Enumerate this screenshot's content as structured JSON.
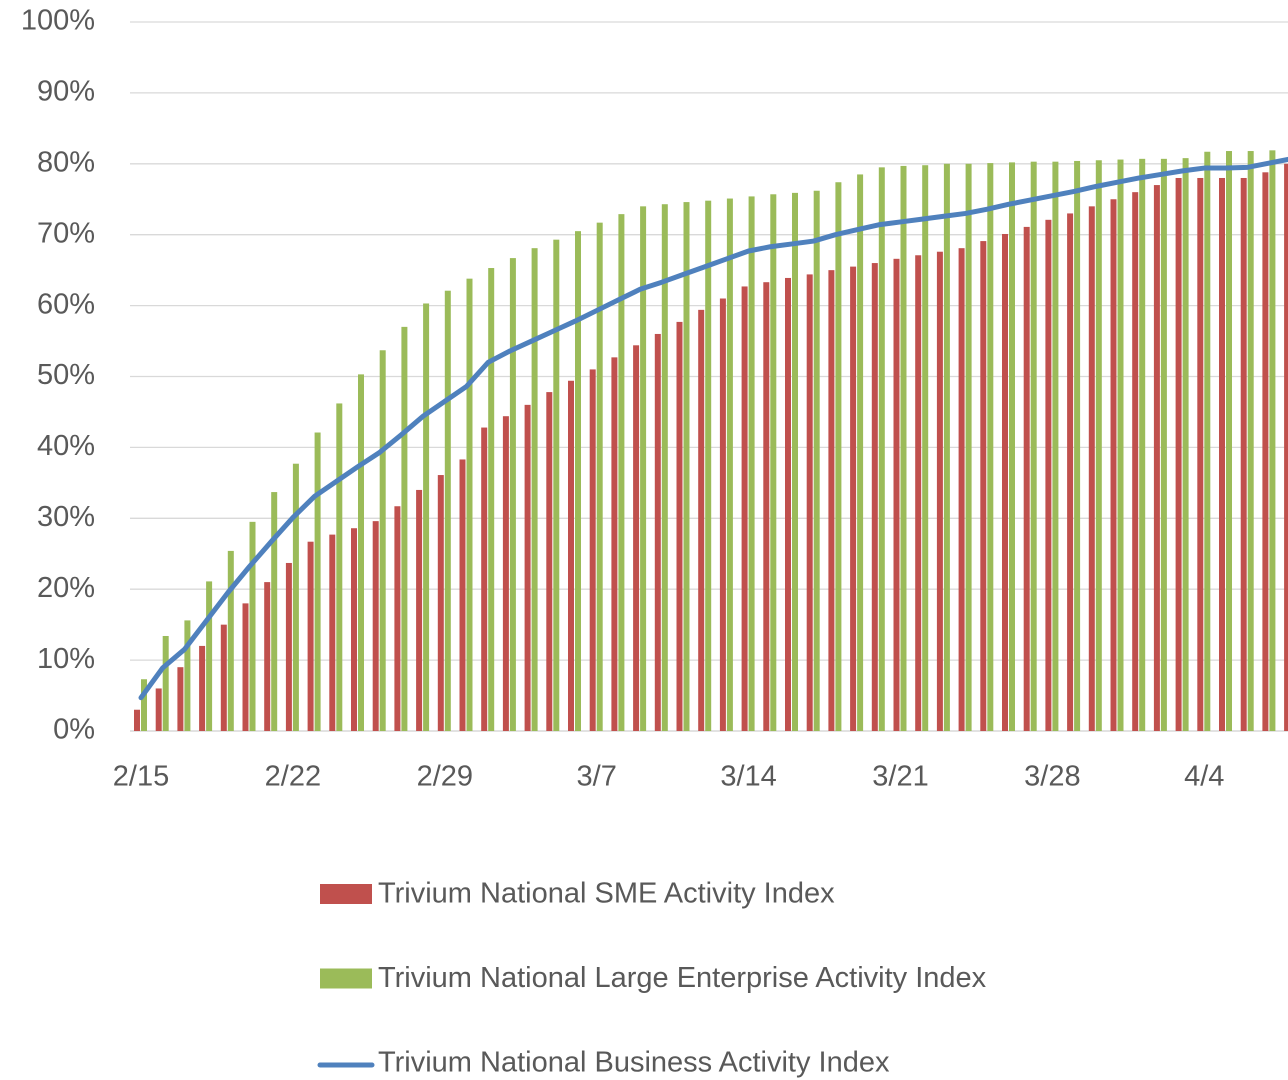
{
  "chart_data": {
    "type": "bar",
    "categories": [
      "2/15",
      null,
      null,
      null,
      null,
      null,
      null,
      "2/22",
      null,
      null,
      null,
      null,
      null,
      null,
      "2/29",
      null,
      null,
      null,
      null,
      null,
      null,
      "3/7",
      null,
      null,
      null,
      null,
      null,
      null,
      "3/14",
      null,
      null,
      null,
      null,
      null,
      null,
      "3/21",
      null,
      null,
      null,
      null,
      null,
      null,
      "3/28",
      null,
      null,
      null,
      null,
      null,
      null,
      "4/4",
      null,
      null,
      null,
      null
    ],
    "series": [
      {
        "name": "Trivium National SME Activity Index",
        "type": "bar",
        "color": "#c0504d",
        "values": [
          3,
          6,
          9,
          12,
          15,
          18,
          21,
          23.7,
          26.7,
          27.7,
          28.6,
          29.6,
          31.7,
          34,
          36.1,
          38.3,
          42.8,
          44.4,
          46,
          47.8,
          49.4,
          51,
          52.7,
          54.4,
          56,
          57.7,
          59.4,
          61,
          62.7,
          63.3,
          63.9,
          64.4,
          65,
          65.5,
          66,
          66.6,
          67.1,
          67.6,
          68.1,
          69.1,
          70.1,
          71.1,
          72.1,
          73,
          74,
          75,
          76,
          77,
          78,
          78,
          78,
          78,
          78.8,
          80
        ]
      },
      {
        "name": "Trivium National Large Enterprise Activity Index",
        "type": "bar",
        "color": "#9bbb59",
        "values": [
          7.3,
          13.4,
          15.6,
          21.1,
          25.4,
          29.5,
          33.7,
          37.7,
          42.1,
          46.2,
          50.3,
          53.7,
          57,
          60.3,
          62.1,
          63.8,
          65.3,
          66.7,
          68.1,
          69.3,
          70.5,
          71.7,
          72.9,
          74,
          74.3,
          74.6,
          74.8,
          75.1,
          75.4,
          75.7,
          75.9,
          76.2,
          77.4,
          78.5,
          79.5,
          79.7,
          79.8,
          80,
          80,
          80.1,
          80.2,
          80.3,
          80.3,
          80.4,
          80.5,
          80.6,
          80.7,
          80.7,
          80.8,
          81.7,
          81.8,
          81.8,
          81.9,
          82
        ]
      },
      {
        "name": "Trivium National Business Activity Index",
        "type": "line",
        "color": "#4f81bd",
        "values": [
          4.7,
          8.9,
          11.5,
          15.5,
          19.5,
          23.2,
          26.7,
          30.1,
          33.1,
          35.2,
          37.3,
          39.3,
          41.8,
          44.4,
          46.5,
          48.6,
          52,
          53.6,
          55,
          56.4,
          57.8,
          59.3,
          60.8,
          62.3,
          63.3,
          64.4,
          65.5,
          66.6,
          67.7,
          68.3,
          68.7,
          69.1,
          70,
          70.7,
          71.4,
          71.8,
          72.2,
          72.6,
          73,
          73.6,
          74.3,
          74.9,
          75.5,
          76.1,
          76.8,
          77.4,
          78,
          78.5,
          79,
          79.4,
          79.4,
          79.5,
          80.1,
          80.7
        ]
      }
    ],
    "ylim": [
      0,
      100
    ],
    "yticks": [
      {
        "value": 0,
        "label": "0%"
      },
      {
        "value": 10,
        "label": "10%"
      },
      {
        "value": 20,
        "label": "20%"
      },
      {
        "value": 30,
        "label": "30%"
      },
      {
        "value": 40,
        "label": "40%"
      },
      {
        "value": 50,
        "label": "50%"
      },
      {
        "value": 60,
        "label": "60%"
      },
      {
        "value": 70,
        "label": "70%"
      },
      {
        "value": 80,
        "label": "80%"
      },
      {
        "value": 90,
        "label": "90%"
      },
      {
        "value": 100,
        "label": "100%"
      }
    ],
    "grid": true,
    "legend": "bottom"
  }
}
